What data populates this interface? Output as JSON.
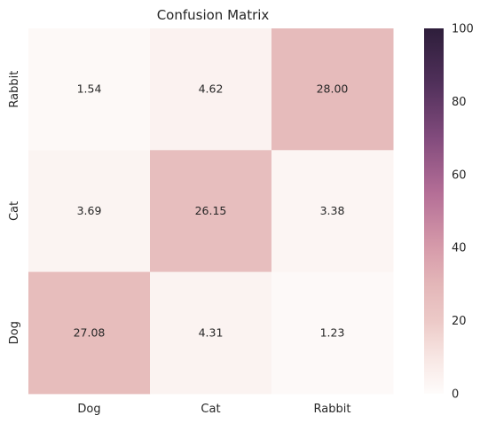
{
  "chart_data": {
    "type": "heatmap",
    "title": "Confusion Matrix",
    "xlabel": "",
    "ylabel": "",
    "x_categories": [
      "Dog",
      "Cat",
      "Rabbit"
    ],
    "y_categories": [
      "Rabbit",
      "Cat",
      "Dog"
    ],
    "values": [
      [
        1.54,
        4.62,
        28.0
      ],
      [
        3.69,
        26.15,
        3.38
      ],
      [
        27.08,
        4.31,
        1.23
      ]
    ],
    "value_labels": [
      [
        "1.54",
        "4.62",
        "28.00"
      ],
      [
        "3.69",
        "26.15",
        "3.38"
      ],
      [
        "27.08",
        "4.31",
        "1.23"
      ]
    ],
    "colorbar": {
      "range": [
        0,
        100
      ],
      "ticks": [
        "0",
        "20",
        "40",
        "60",
        "80",
        "100"
      ]
    },
    "colors": {
      "low": "#fefcfb",
      "high": "#2e1e3b"
    }
  }
}
